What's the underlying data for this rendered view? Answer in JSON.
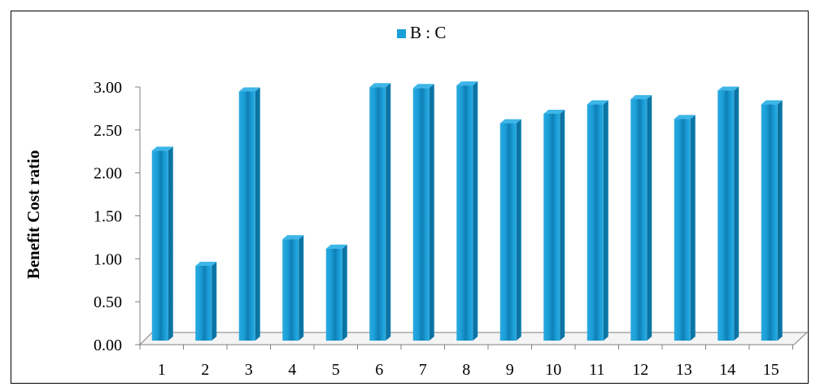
{
  "chart_data": {
    "type": "bar",
    "title": "",
    "xlabel": "",
    "ylabel": "Benefit Cost ratio",
    "categories": [
      "1",
      "2",
      "3",
      "4",
      "5",
      "6",
      "7",
      "8",
      "9",
      "10",
      "11",
      "12",
      "13",
      "14",
      "15"
    ],
    "series": [
      {
        "name": "B : C",
        "color": "#1aa0d8",
        "values": [
          2.22,
          0.88,
          2.91,
          1.19,
          1.08,
          2.96,
          2.95,
          2.98,
          2.54,
          2.65,
          2.76,
          2.82,
          2.59,
          2.92,
          2.76
        ]
      }
    ],
    "ylim": [
      0,
      3
    ],
    "y_ticks": [
      "0.00",
      "0.50",
      "1.00",
      "1.50",
      "2.00",
      "2.50",
      "3.00"
    ],
    "grid": false,
    "legend_position": "top-center",
    "style": "3d-cylinder-bar"
  }
}
